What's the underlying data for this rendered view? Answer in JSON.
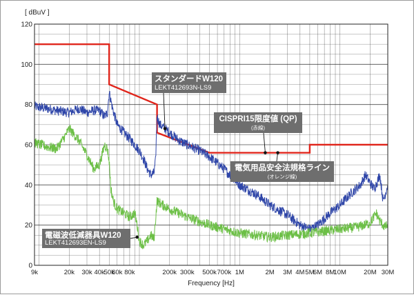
{
  "chart_data": {
    "type": "line",
    "xscale": "log",
    "xlim": [
      9000,
      30000000
    ],
    "ylim": [
      0,
      120
    ],
    "yunit": "[ dBuV ]",
    "xlabel": "Frequency [Hz]",
    "grid": true,
    "yticks": [
      0,
      20,
      40,
      60,
      80,
      100,
      120
    ],
    "ytick_labels": [
      "0",
      "20",
      "40",
      "60",
      "80",
      "100",
      "120"
    ],
    "xticks": [
      {
        "hz": 9000,
        "label": "9k"
      },
      {
        "hz": 20000,
        "label": "20k"
      },
      {
        "hz": 30000,
        "label": "30k"
      },
      {
        "hz": 40000,
        "label": "40k"
      },
      {
        "hz": 50000,
        "label": "50k"
      },
      {
        "hz": 60000,
        "label": "60k"
      },
      {
        "hz": 80000,
        "label": "80k"
      },
      {
        "hz": 200000,
        "label": "200k"
      },
      {
        "hz": 300000,
        "label": "300k"
      },
      {
        "hz": 500000,
        "label": "500k"
      },
      {
        "hz": 700000,
        "label": "700k"
      },
      {
        "hz": 1000000,
        "label": "1M"
      },
      {
        "hz": 2000000,
        "label": "2M"
      },
      {
        "hz": 3000000,
        "label": "3M"
      },
      {
        "hz": 4000000,
        "label": "4M"
      },
      {
        "hz": 5000000,
        "label": "5M"
      },
      {
        "hz": 6000000,
        "label": "6M"
      },
      {
        "hz": 8000000,
        "label": "8M"
      },
      {
        "hz": 10000000,
        "label": "10M"
      },
      {
        "hz": 20000000,
        "label": "20M"
      },
      {
        "hz": 30000000,
        "label": "30M"
      }
    ],
    "series": [
      {
        "color": "#e0251b",
        "points": [
          [
            9000,
            110
          ],
          [
            50000,
            110
          ],
          [
            50000,
            90
          ],
          [
            150000,
            80
          ],
          [
            150000,
            66
          ],
          [
            500000,
            56
          ],
          [
            5000000,
            56
          ],
          [
            5000000,
            60
          ],
          [
            30000000,
            60
          ]
        ]
      },
      {
        "color": "#2e45a8",
        "points": [
          [
            9000,
            79
          ],
          [
            12000,
            78
          ],
          [
            15000,
            77
          ],
          [
            20000,
            76
          ],
          [
            25000,
            78
          ],
          [
            30000,
            76
          ],
          [
            35000,
            77
          ],
          [
            40000,
            77
          ],
          [
            45000,
            74
          ],
          [
            48000,
            76
          ],
          [
            50000,
            86
          ],
          [
            52000,
            82
          ],
          [
            54000,
            78
          ],
          [
            57000,
            74
          ],
          [
            60000,
            70
          ],
          [
            65000,
            68
          ],
          [
            70000,
            66
          ],
          [
            80000,
            63
          ],
          [
            90000,
            60
          ],
          [
            100000,
            57
          ],
          [
            110000,
            53
          ],
          [
            120000,
            48
          ],
          [
            130000,
            45
          ],
          [
            140000,
            46
          ],
          [
            145000,
            52
          ],
          [
            150000,
            74
          ],
          [
            160000,
            70
          ],
          [
            180000,
            68
          ],
          [
            200000,
            66
          ],
          [
            250000,
            62
          ],
          [
            300000,
            60
          ],
          [
            400000,
            57
          ],
          [
            500000,
            54
          ],
          [
            700000,
            48
          ],
          [
            1000000,
            40
          ],
          [
            1500000,
            35
          ],
          [
            2000000,
            30
          ],
          [
            3000000,
            25
          ],
          [
            4000000,
            20
          ],
          [
            5000000,
            18
          ],
          [
            6000000,
            20
          ],
          [
            8000000,
            26
          ],
          [
            10000000,
            30
          ],
          [
            13000000,
            36
          ],
          [
            16000000,
            40
          ],
          [
            18000000,
            45
          ],
          [
            20000000,
            41
          ],
          [
            22000000,
            38
          ],
          [
            25000000,
            45
          ],
          [
            27000000,
            32
          ],
          [
            30000000,
            40
          ]
        ]
      },
      {
        "color": "#6cbf46",
        "points": [
          [
            9000,
            61
          ],
          [
            12000,
            59
          ],
          [
            15000,
            58
          ],
          [
            18000,
            64
          ],
          [
            20000,
            68
          ],
          [
            25000,
            62
          ],
          [
            30000,
            55
          ],
          [
            35000,
            48
          ],
          [
            40000,
            50
          ],
          [
            45000,
            60
          ],
          [
            48000,
            58
          ],
          [
            50000,
            52
          ],
          [
            52000,
            38
          ],
          [
            55000,
            32
          ],
          [
            60000,
            28
          ],
          [
            70000,
            26
          ],
          [
            80000,
            24
          ],
          [
            90000,
            26
          ],
          [
            95000,
            20
          ],
          [
            100000,
            12
          ],
          [
            110000,
            10
          ],
          [
            120000,
            12
          ],
          [
            130000,
            15
          ],
          [
            140000,
            13
          ],
          [
            150000,
            32
          ],
          [
            170000,
            30
          ],
          [
            200000,
            28
          ],
          [
            300000,
            24
          ],
          [
            500000,
            20
          ],
          [
            700000,
            18
          ],
          [
            1000000,
            16
          ],
          [
            1500000,
            15
          ],
          [
            2000000,
            14
          ],
          [
            3000000,
            15
          ],
          [
            5000000,
            16
          ],
          [
            7000000,
            17
          ],
          [
            10000000,
            18
          ],
          [
            15000000,
            19
          ],
          [
            20000000,
            21
          ],
          [
            23000000,
            26
          ],
          [
            25000000,
            22
          ],
          [
            28000000,
            19
          ],
          [
            30000000,
            20
          ]
        ]
      }
    ],
    "annotations": [
      {
        "id": "std",
        "title": "スタンダードW120",
        "sub": "LEKT412693N-LS9",
        "hz": 180000,
        "db": 68
      },
      {
        "id": "filt",
        "title": "電磁波低減器具W120",
        "sub": "LEKT412693EN-LS9",
        "hz": 95000,
        "db": 14
      },
      {
        "id": "cispr",
        "title": "CISPRI15限度値 (QP)",
        "sub": "(赤線)",
        "hz": 1800000,
        "db": 56
      },
      {
        "id": "jis",
        "title": "電気用品安全法規格ライン",
        "sub": "(オレンジ線)",
        "hz": 2400000,
        "db": 56
      }
    ]
  }
}
